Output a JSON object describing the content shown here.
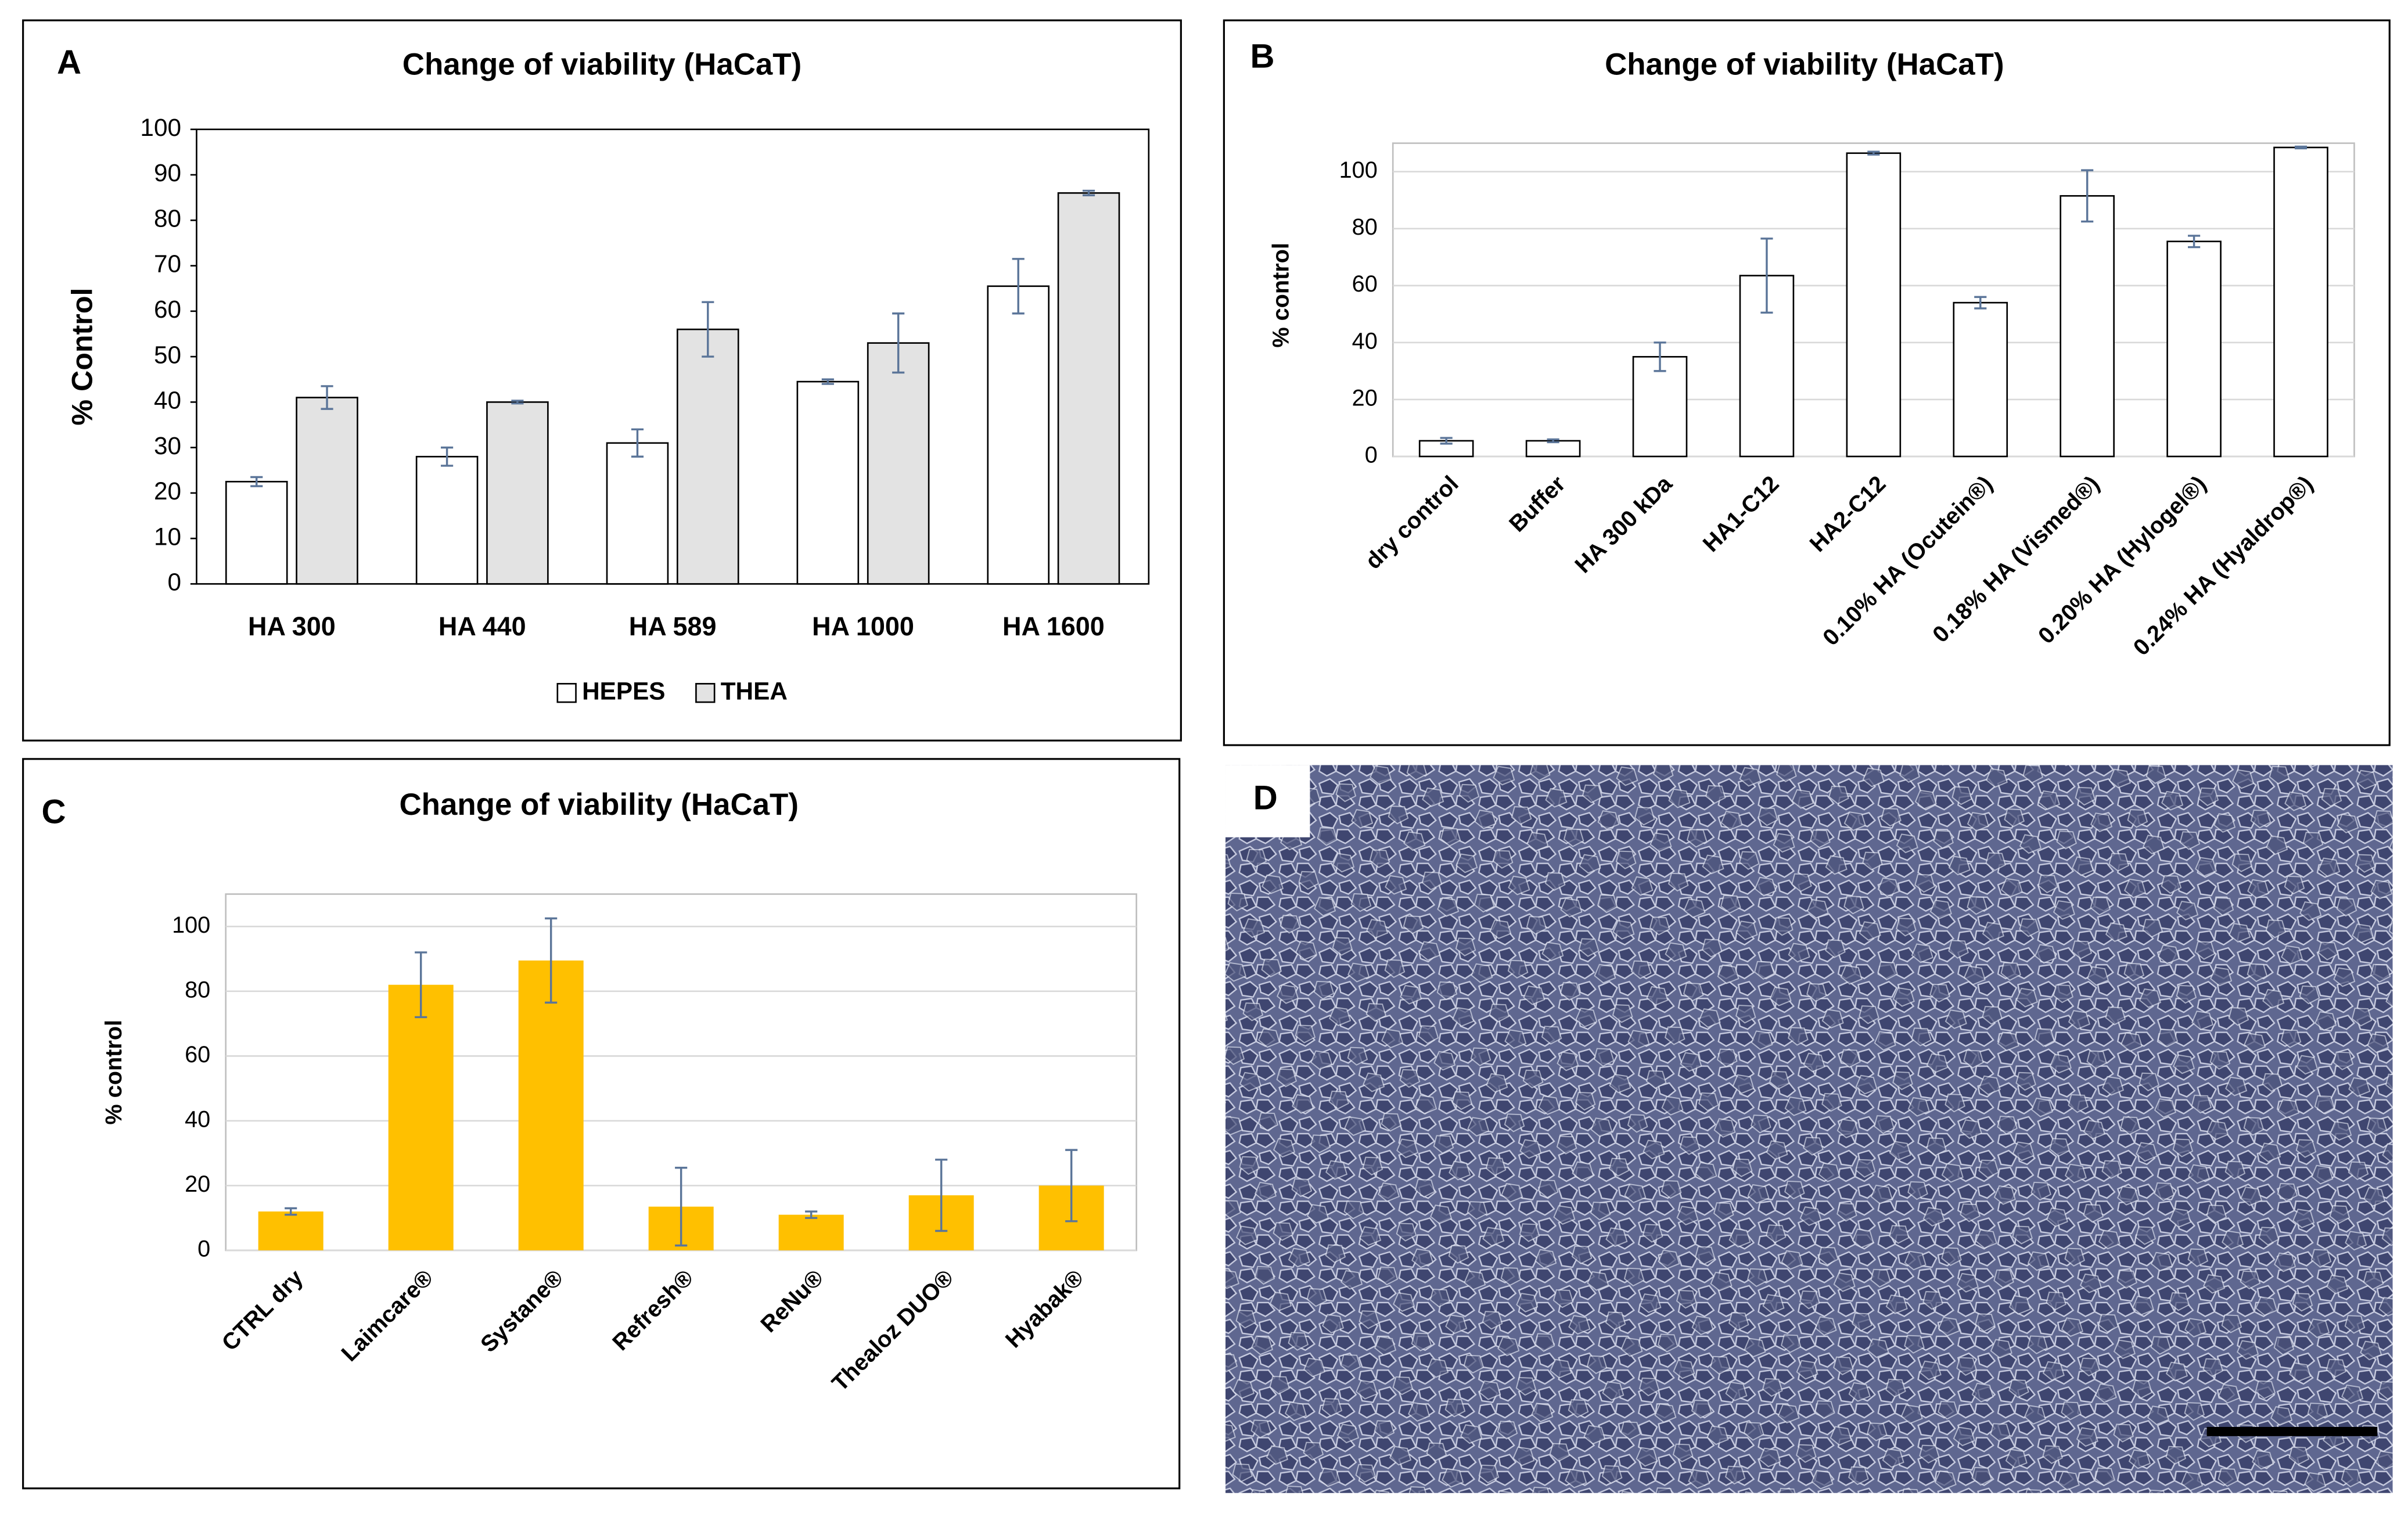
{
  "chart_data": [
    {
      "type": "bar",
      "panel": "A",
      "title": "Change of viability (HaCaT)",
      "ylabel": "% Control",
      "categories": [
        "HA 300",
        "HA 440",
        "HA 589",
        "HA 1000",
        "HA 1600"
      ],
      "series": [
        {
          "name": "HEPES",
          "color": "#ffffff",
          "values": [
            22.5,
            28,
            31,
            44.5,
            65.5
          ],
          "errors": [
            1,
            2,
            3,
            0.5,
            6
          ]
        },
        {
          "name": "THEA",
          "color": "#e3e3e3",
          "values": [
            41,
            40,
            56,
            53,
            86
          ],
          "errors": [
            2.5,
            0.3,
            6,
            6.5,
            0.5
          ]
        }
      ],
      "ylim": [
        0,
        100
      ],
      "yticks": [
        0,
        10,
        20,
        30,
        40,
        50,
        60,
        70,
        80,
        90,
        100
      ],
      "grid": false,
      "legend": "bottom"
    },
    {
      "type": "bar",
      "panel": "B",
      "title": "Change of viability (HaCaT)",
      "ylabel": "% control",
      "categories": [
        "dry control",
        "Buffer",
        "HA 300 kDa",
        "HA1-C12",
        "HA2-C12",
        "0.10% HA (Ocutein®)",
        "0.18% HA (Vismed®)",
        "0.20% HA (Hylogel®)",
        "0.24% HA (Hyaldrop®)"
      ],
      "series": [
        {
          "color": "#ffffff",
          "values": [
            5.5,
            5.5,
            35,
            63.5,
            106.5,
            54,
            91.5,
            75.5,
            108.5
          ],
          "errors": [
            1,
            0.5,
            5,
            13,
            0.5,
            2,
            9,
            2,
            0.3
          ]
        }
      ],
      "ylim": [
        0,
        110
      ],
      "yticks": [
        0,
        20,
        40,
        60,
        80,
        100
      ],
      "grid": true
    },
    {
      "type": "bar",
      "panel": "C",
      "title": "Change of viability (HaCaT)",
      "ylabel": "% control",
      "categories": [
        "CTRL dry",
        "Laimcare®",
        "Systane®",
        "Refresh®",
        "ReNu®",
        "Thealoz DUO®",
        "Hyabak®"
      ],
      "series": [
        {
          "color": "#ffc000",
          "values": [
            12,
            82,
            89.5,
            13.5,
            11,
            17,
            20
          ],
          "errors": [
            1,
            10,
            13,
            12,
            1,
            11,
            11
          ]
        }
      ],
      "ylim": [
        0,
        110
      ],
      "yticks": [
        0,
        20,
        40,
        60,
        80,
        100
      ],
      "grid": true
    }
  ],
  "image_panel": {
    "panel": "D"
  }
}
